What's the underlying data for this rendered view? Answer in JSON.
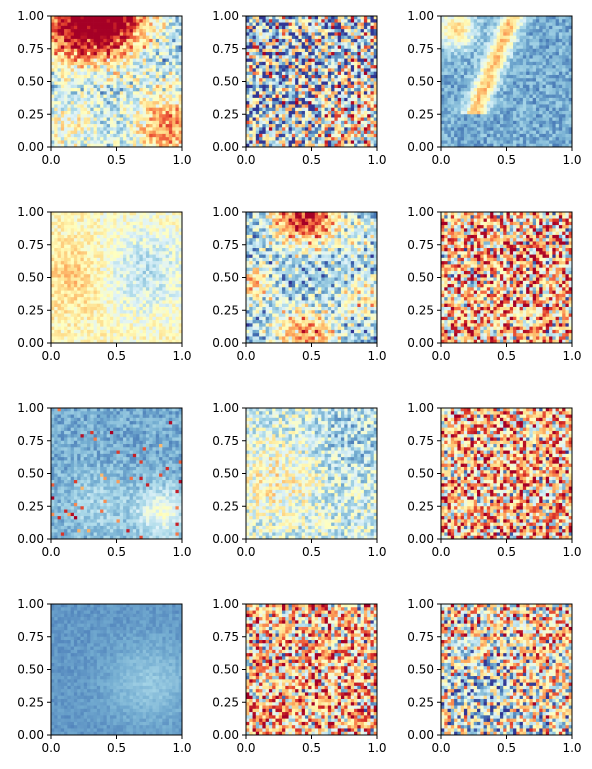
{
  "chart_data": [
    {
      "type": "heatmap",
      "panel": "r1c1",
      "pattern": "red-top-left-blue-center-yellow-bottom-left-orange-right",
      "xlim": [
        0,
        1
      ],
      "ylim": [
        0,
        1
      ],
      "xticks": [
        "0.0",
        "0.5",
        "1.0"
      ],
      "yticks": [
        "0.00",
        "0.25",
        "0.50",
        "0.75",
        "1.00"
      ]
    },
    {
      "type": "heatmap",
      "panel": "r1c2",
      "pattern": "mixed-noisy-grid",
      "xlim": [
        0,
        1
      ],
      "ylim": [
        0,
        1
      ],
      "xticks": [
        "0.0",
        "0.5",
        "1.0"
      ],
      "yticks": [
        "0.00",
        "0.25",
        "0.50",
        "0.75",
        "1.00"
      ]
    },
    {
      "type": "heatmap",
      "panel": "r1c3",
      "pattern": "blue-with-orange-streak-top-left",
      "xlim": [
        0,
        1
      ],
      "ylim": [
        0,
        1
      ],
      "xticks": [
        "0.0",
        "0.5",
        "1.0"
      ],
      "yticks": [
        "0.00",
        "0.25",
        "0.50",
        "0.75",
        "1.00"
      ]
    },
    {
      "type": "heatmap",
      "panel": "r2c1",
      "pattern": "pale-yellow-light-blue",
      "xlim": [
        0,
        1
      ],
      "ylim": [
        0,
        1
      ],
      "xticks": [
        "0.0",
        "0.5",
        "1.0"
      ],
      "yticks": [
        "0.00",
        "0.25",
        "0.50",
        "0.75",
        "1.00"
      ]
    },
    {
      "type": "heatmap",
      "panel": "r2c2",
      "pattern": "blue-red-top-and-bottom-pale-top-right",
      "xlim": [
        0,
        1
      ],
      "ylim": [
        0,
        1
      ],
      "xticks": [
        "0.0",
        "0.5",
        "1.0"
      ],
      "yticks": [
        "0.00",
        "0.25",
        "0.50",
        "0.75",
        "1.00"
      ]
    },
    {
      "type": "heatmap",
      "panel": "r2c3",
      "pattern": "orange-noisy-grid",
      "xlim": [
        0,
        1
      ],
      "ylim": [
        0,
        1
      ],
      "xticks": [
        "0.0",
        "0.5",
        "1.0"
      ],
      "yticks": [
        "0.00",
        "0.25",
        "0.50",
        "0.75",
        "1.00"
      ]
    },
    {
      "type": "heatmap",
      "panel": "r3c1",
      "pattern": "blue-with-pale-bottom-right",
      "xlim": [
        0,
        1
      ],
      "ylim": [
        0,
        1
      ],
      "xticks": [
        "0.0",
        "0.5",
        "1.0"
      ],
      "yticks": [
        "0.00",
        "0.25",
        "0.50",
        "0.75",
        "1.00"
      ]
    },
    {
      "type": "heatmap",
      "panel": "r3c2",
      "pattern": "light-blue-pale-mix",
      "xlim": [
        0,
        1
      ],
      "ylim": [
        0,
        1
      ],
      "xticks": [
        "0.0",
        "0.5",
        "1.0"
      ],
      "yticks": [
        "0.00",
        "0.25",
        "0.50",
        "0.75",
        "1.00"
      ]
    },
    {
      "type": "heatmap",
      "panel": "r3c3",
      "pattern": "orange-noisy-grid",
      "xlim": [
        0,
        1
      ],
      "ylim": [
        0,
        1
      ],
      "xticks": [
        "0.0",
        "0.5",
        "1.0"
      ],
      "yticks": [
        "0.00",
        "0.25",
        "0.50",
        "0.75",
        "1.00"
      ]
    },
    {
      "type": "heatmap",
      "panel": "r4c1",
      "pattern": "smooth-blue",
      "xlim": [
        0,
        1
      ],
      "ylim": [
        0,
        1
      ],
      "xticks": [
        "0.0",
        "0.5",
        "1.0"
      ],
      "yticks": [
        "0.00",
        "0.25",
        "0.50",
        "0.75",
        "1.00"
      ]
    },
    {
      "type": "heatmap",
      "panel": "r4c2",
      "pattern": "orange-noisy-grid",
      "xlim": [
        0,
        1
      ],
      "ylim": [
        0,
        1
      ],
      "xticks": [
        "0.0",
        "0.5",
        "1.0"
      ],
      "yticks": [
        "0.00",
        "0.25",
        "0.50",
        "0.75",
        "1.00"
      ]
    },
    {
      "type": "heatmap",
      "panel": "r4c3",
      "pattern": "mixed-orange-blue-bottom-left",
      "xlim": [
        0,
        1
      ],
      "ylim": [
        0,
        1
      ],
      "xticks": [
        "0.0",
        "0.5",
        "1.0"
      ],
      "yticks": [
        "0.00",
        "0.25",
        "0.50",
        "0.75",
        "1.00"
      ]
    }
  ],
  "colormap": {
    "name": "RdYlBu",
    "stops": [
      "#a50026",
      "#d73027",
      "#f46d43",
      "#fdae61",
      "#fee090",
      "#ffffbf",
      "#e0f3f8",
      "#abd9e9",
      "#74add1",
      "#4575b4",
      "#313695"
    ]
  }
}
